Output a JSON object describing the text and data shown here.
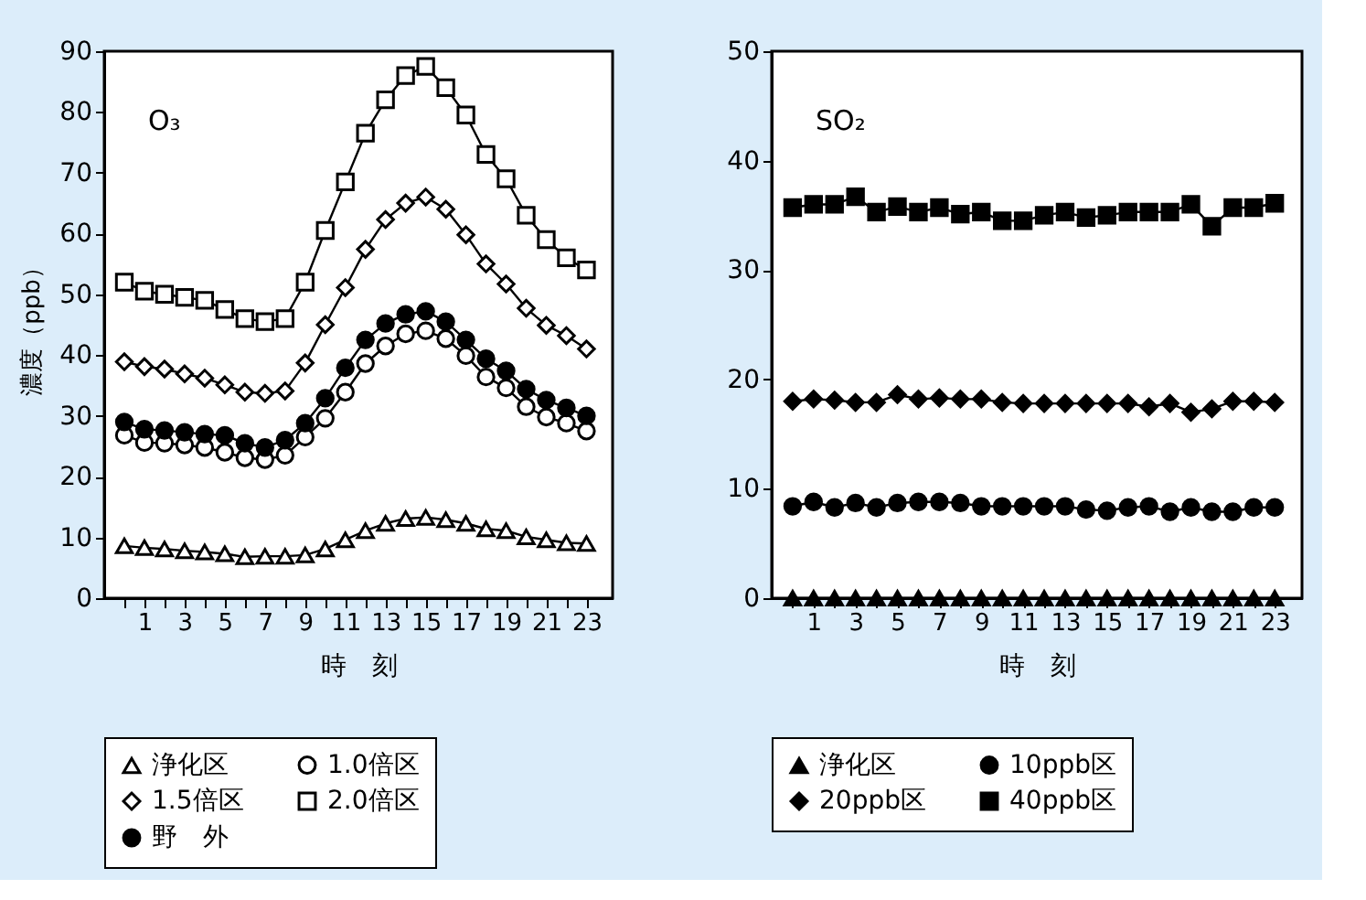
{
  "chart_data": [
    {
      "type": "line",
      "ylabel": "濃度（ppb）",
      "xlabel": "時　刻",
      "annotations": [
        "O₃"
      ],
      "x": [
        0,
        1,
        2,
        3,
        4,
        5,
        6,
        7,
        8,
        9,
        10,
        11,
        12,
        13,
        14,
        15,
        16,
        17,
        18,
        19,
        20,
        21,
        22,
        23
      ],
      "xlim": [
        -1,
        24.3
      ],
      "xticks": [
        {
          "value": 0,
          "label": null
        },
        1,
        {
          "value": 2,
          "label": null
        },
        3,
        {
          "value": 4,
          "label": null
        },
        5,
        {
          "value": 6,
          "label": null
        },
        7,
        {
          "value": 8,
          "label": null
        },
        9,
        {
          "value": 10,
          "label": null
        },
        11,
        {
          "value": 12,
          "label": null
        },
        13,
        {
          "value": 14,
          "label": null
        },
        15,
        {
          "value": 16,
          "label": null
        },
        17,
        {
          "value": 18,
          "label": null
        },
        19,
        {
          "value": 20,
          "label": null
        },
        21,
        {
          "value": 22,
          "label": null
        },
        23
      ],
      "ylim": [
        0,
        90
      ],
      "yticks": [
        0,
        10,
        20,
        30,
        40,
        50,
        60,
        70,
        80,
        90
      ],
      "grid": false,
      "legend": "bottom",
      "series": [
        {
          "name": "浄化区",
          "color": "#ffffff",
          "marker": "triangle",
          "values": [
            8.6,
            8.3,
            8.1,
            7.8,
            7.6,
            7.3,
            6.8,
            6.9,
            6.9,
            7.1,
            8.1,
            9.6,
            11.1,
            12.3,
            13.1,
            13.3,
            12.9,
            12.3,
            11.4,
            11.1,
            10.1,
            9.6,
            9.1,
            9
          ]
        },
        {
          "name": "1.0倍区",
          "color": "#ffffff",
          "marker": "circle",
          "values": [
            26.8,
            25.6,
            25.5,
            25.2,
            24.8,
            24,
            23.1,
            22.8,
            23.5,
            26.5,
            29.6,
            33.9,
            38.6,
            41.5,
            43.5,
            44,
            42.7,
            39.9,
            36.4,
            34.6,
            31.5,
            29.8,
            28.8,
            27.5
          ]
        },
        {
          "name": "1.5倍区",
          "color": "#ffffff",
          "marker": "diamond",
          "values": [
            38.9,
            38.1,
            37.7,
            36.9,
            36.2,
            35.1,
            33.9,
            33.7,
            34.1,
            38.7,
            45,
            51.1,
            57.4,
            62.3,
            65,
            66,
            64,
            59.8,
            55,
            51.7,
            47.7,
            44.9,
            43.2,
            41
          ]
        },
        {
          "name": "2.0倍区",
          "color": "#ffffff",
          "marker": "square",
          "values": [
            52,
            50.5,
            50,
            49.5,
            49,
            47.5,
            46,
            45.5,
            46,
            52,
            60.5,
            68.5,
            76.5,
            82,
            86,
            87.5,
            84,
            79.5,
            73,
            69,
            63,
            59,
            56,
            54
          ]
        },
        {
          "name": "野　外",
          "color": "#000000",
          "marker": "circle",
          "values": [
            29,
            27.8,
            27.6,
            27.3,
            27,
            26.8,
            25.5,
            24.8,
            26,
            28.8,
            32.9,
            37.9,
            42.5,
            45.2,
            46.7,
            47.2,
            45.5,
            42.5,
            39.4,
            37.4,
            34.4,
            32.6,
            31.3,
            30
          ]
        }
      ]
    },
    {
      "type": "line",
      "xlabel": "時　刻",
      "annotations": [
        "SO₂"
      ],
      "x": [
        0,
        1,
        2,
        3,
        4,
        5,
        6,
        7,
        8,
        9,
        10,
        11,
        12,
        13,
        14,
        15,
        16,
        17,
        18,
        19,
        20,
        21,
        22,
        23
      ],
      "xlim": [
        -1,
        24.3
      ],
      "xticks": [
        {
          "value": 0,
          "label": null
        },
        1,
        {
          "value": 2,
          "label": null
        },
        3,
        {
          "value": 4,
          "label": null
        },
        5,
        {
          "value": 6,
          "label": null
        },
        7,
        {
          "value": 8,
          "label": null
        },
        9,
        {
          "value": 10,
          "label": null
        },
        11,
        {
          "value": 12,
          "label": null
        },
        13,
        {
          "value": 14,
          "label": null
        },
        15,
        {
          "value": 16,
          "label": null
        },
        17,
        {
          "value": 18,
          "label": null
        },
        19,
        {
          "value": 20,
          "label": null
        },
        21,
        {
          "value": 22,
          "label": null
        },
        23
      ],
      "ylim": [
        0,
        50
      ],
      "yticks": [
        0,
        10,
        20,
        30,
        40,
        50
      ],
      "grid": false,
      "legend": "bottom",
      "series": [
        {
          "name": "浄化区",
          "color": "#000000",
          "marker": "triangle",
          "values": [
            0,
            0,
            0,
            0,
            0,
            0,
            0,
            0,
            0,
            0,
            0,
            0,
            0,
            0,
            0,
            0,
            0,
            0,
            0,
            0,
            0,
            0,
            0,
            0
          ]
        },
        {
          "name": "10ppb区",
          "color": "#000000",
          "marker": "circle",
          "values": [
            8.4,
            8.8,
            8.3,
            8.7,
            8.3,
            8.7,
            8.8,
            8.8,
            8.7,
            8.4,
            8.4,
            8.4,
            8.4,
            8.4,
            8.1,
            8,
            8.3,
            8.4,
            7.9,
            8.3,
            7.9,
            7.9,
            8.3,
            8.3
          ]
        },
        {
          "name": "20ppb区",
          "color": "#000000",
          "marker": "diamond",
          "values": [
            18,
            18.2,
            18.1,
            17.9,
            17.9,
            18.6,
            18.2,
            18.3,
            18.2,
            18.2,
            17.9,
            17.8,
            17.8,
            17.8,
            17.8,
            17.8,
            17.8,
            17.5,
            17.8,
            17,
            17.3,
            18,
            18,
            17.9
          ]
        },
        {
          "name": "40ppb区",
          "color": "#000000",
          "marker": "square",
          "values": [
            35.7,
            36,
            36,
            36.7,
            35.3,
            35.8,
            35.3,
            35.7,
            35.1,
            35.3,
            34.5,
            34.5,
            35,
            35.3,
            34.8,
            35,
            35.3,
            35.3,
            35.3,
            36,
            34,
            35.7,
            35.7,
            36.1
          ]
        }
      ]
    }
  ]
}
